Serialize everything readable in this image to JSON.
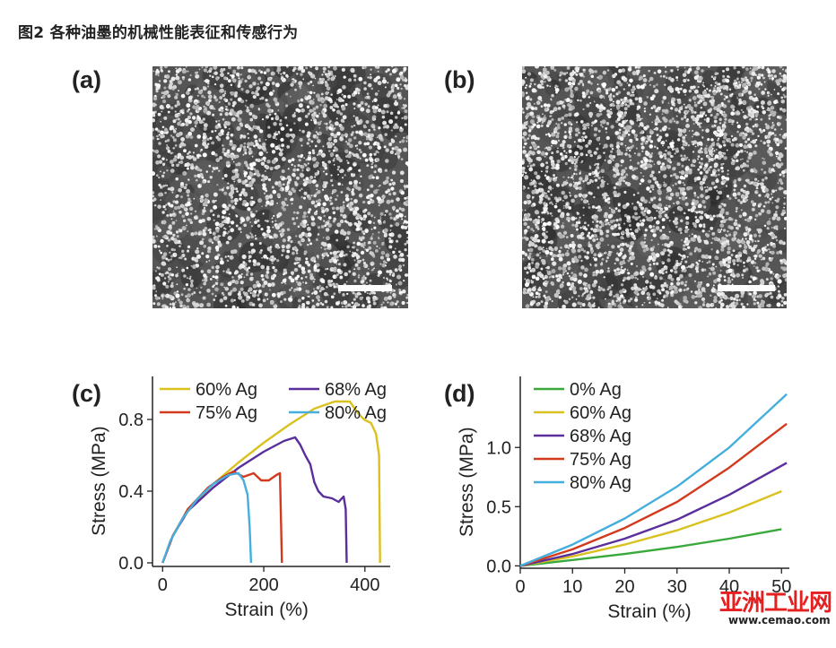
{
  "caption": "图2 各种油墨的机械性能表征和传感行为",
  "panels": {
    "a": "(a)",
    "b": "(b)",
    "c": "(c)",
    "d": "(d)"
  },
  "watermark": {
    "text_cn": "亚洲工业网",
    "url": "www.cemao.com"
  },
  "chart_data": [
    {
      "panel": "(c)",
      "type": "line",
      "xlabel": "Strain (%)",
      "ylabel": "Stress (MPa)",
      "xlim": [
        -20,
        450
      ],
      "ylim": [
        -0.02,
        1.04
      ],
      "xticks": [
        0,
        200,
        400
      ],
      "yticks": [
        0.0,
        0.4,
        0.8
      ],
      "ytick_labels": [
        "0.0",
        "0.4",
        "0.8"
      ],
      "legend": "top",
      "series": [
        {
          "name": "60% Ag",
          "color": "#d9c21f",
          "points": [
            [
              0,
              0
            ],
            [
              20,
              0.15
            ],
            [
              50,
              0.3
            ],
            [
              100,
              0.44
            ],
            [
              150,
              0.56
            ],
            [
              200,
              0.67
            ],
            [
              250,
              0.77
            ],
            [
              300,
              0.86
            ],
            [
              340,
              0.9
            ],
            [
              370,
              0.9
            ],
            [
              385,
              0.84
            ],
            [
              398,
              0.8
            ],
            [
              412,
              0.78
            ],
            [
              422,
              0.72
            ],
            [
              428,
              0.6
            ],
            [
              430,
              0
            ]
          ]
        },
        {
          "name": "68% Ag",
          "color": "#5a2e9c",
          "points": [
            [
              0,
              0
            ],
            [
              20,
              0.15
            ],
            [
              50,
              0.29
            ],
            [
              100,
              0.42
            ],
            [
              150,
              0.53
            ],
            [
              200,
              0.62
            ],
            [
              240,
              0.68
            ],
            [
              262,
              0.7
            ],
            [
              272,
              0.66
            ],
            [
              282,
              0.6
            ],
            [
              292,
              0.55
            ],
            [
              300,
              0.45
            ],
            [
              308,
              0.4
            ],
            [
              318,
              0.37
            ],
            [
              335,
              0.36
            ],
            [
              348,
              0.34
            ],
            [
              358,
              0.37
            ],
            [
              362,
              0.3
            ],
            [
              364,
              0
            ]
          ]
        },
        {
          "name": "75% Ag",
          "color": "#d23a1e",
          "points": [
            [
              0,
              0
            ],
            [
              20,
              0.15
            ],
            [
              50,
              0.3
            ],
            [
              90,
              0.42
            ],
            [
              120,
              0.48
            ],
            [
              140,
              0.51
            ],
            [
              160,
              0.48
            ],
            [
              180,
              0.5
            ],
            [
              195,
              0.46
            ],
            [
              210,
              0.46
            ],
            [
              225,
              0.49
            ],
            [
              232,
              0.5
            ],
            [
              236,
              0
            ]
          ]
        },
        {
          "name": "80% Ag",
          "color": "#45aedc",
          "points": [
            [
              0,
              0
            ],
            [
              15,
              0.12
            ],
            [
              40,
              0.25
            ],
            [
              70,
              0.36
            ],
            [
              100,
              0.44
            ],
            [
              130,
              0.49
            ],
            [
              150,
              0.5
            ],
            [
              160,
              0.46
            ],
            [
              168,
              0.38
            ],
            [
              172,
              0.2
            ],
            [
              175,
              0
            ]
          ]
        }
      ]
    },
    {
      "panel": "(d)",
      "type": "line",
      "xlabel": "Strain (%)",
      "ylabel": "Stress (MPa)",
      "xlim": [
        0,
        51.5
      ],
      "ylim": [
        -0.02,
        1.6
      ],
      "xticks": [
        0,
        10,
        20,
        30,
        40,
        50
      ],
      "yticks": [
        0.0,
        0.5,
        1.0
      ],
      "ytick_labels": [
        "0.0",
        "0.5",
        "1.0"
      ],
      "legend": "top-left",
      "series": [
        {
          "name": "0% Ag",
          "color": "#39a93b",
          "points": [
            [
              0,
              0
            ],
            [
              10,
              0.05
            ],
            [
              20,
              0.1
            ],
            [
              30,
              0.16
            ],
            [
              40,
              0.23
            ],
            [
              50,
              0.31
            ]
          ]
        },
        {
          "name": "60% Ag",
          "color": "#d9c21f",
          "points": [
            [
              0,
              0
            ],
            [
              10,
              0.08
            ],
            [
              20,
              0.18
            ],
            [
              30,
              0.3
            ],
            [
              40,
              0.45
            ],
            [
              50,
              0.63
            ]
          ]
        },
        {
          "name": "68% Ag",
          "color": "#5a2e9c",
          "points": [
            [
              0,
              0
            ],
            [
              10,
              0.1
            ],
            [
              20,
              0.23
            ],
            [
              30,
              0.39
            ],
            [
              40,
              0.6
            ],
            [
              51,
              0.87
            ]
          ]
        },
        {
          "name": "75% Ag",
          "color": "#d23a1e",
          "points": [
            [
              0,
              0
            ],
            [
              10,
              0.14
            ],
            [
              20,
              0.32
            ],
            [
              30,
              0.54
            ],
            [
              40,
              0.83
            ],
            [
              51,
              1.2
            ]
          ]
        },
        {
          "name": "80% Ag",
          "color": "#45aedc",
          "points": [
            [
              0,
              0
            ],
            [
              10,
              0.18
            ],
            [
              20,
              0.4
            ],
            [
              30,
              0.67
            ],
            [
              40,
              1.0
            ],
            [
              51,
              1.45
            ]
          ]
        }
      ]
    }
  ]
}
